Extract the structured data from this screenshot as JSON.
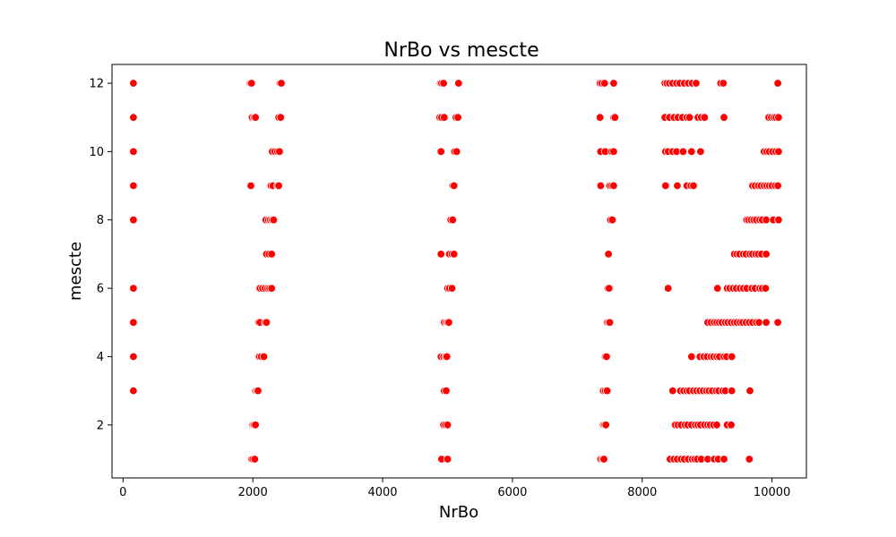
{
  "chart_data": {
    "type": "scatter",
    "title": "NrBo vs mescte",
    "xlabel": "NrBo",
    "ylabel": "mescte",
    "xlim": [
      -170,
      10530
    ],
    "ylim": [
      0.45,
      12.55
    ],
    "xticks": [
      0,
      2000,
      4000,
      6000,
      8000,
      10000
    ],
    "yticks": [
      2,
      4,
      6,
      8,
      10,
      12
    ],
    "grid": false,
    "point_color": "#ff0000",
    "point_edge_color": "#ffffff",
    "points": [
      [
        160,
        3
      ],
      [
        160,
        4
      ],
      [
        160,
        5
      ],
      [
        160,
        6
      ],
      [
        160,
        8
      ],
      [
        160,
        9
      ],
      [
        160,
        10
      ],
      [
        160,
        11
      ],
      [
        160,
        12
      ],
      [
        1960,
        12
      ],
      [
        1980,
        12
      ],
      [
        2420,
        12
      ],
      [
        2440,
        12
      ],
      [
        1990,
        11
      ],
      [
        2020,
        11
      ],
      [
        2040,
        11
      ],
      [
        2400,
        11
      ],
      [
        2430,
        11
      ],
      [
        2300,
        10
      ],
      [
        2340,
        10
      ],
      [
        2380,
        10
      ],
      [
        2410,
        10
      ],
      [
        1970,
        9
      ],
      [
        2280,
        9
      ],
      [
        2310,
        9
      ],
      [
        2380,
        9
      ],
      [
        2400,
        9
      ],
      [
        2200,
        8
      ],
      [
        2240,
        8
      ],
      [
        2270,
        8
      ],
      [
        2300,
        8
      ],
      [
        2320,
        8
      ],
      [
        2210,
        7
      ],
      [
        2250,
        7
      ],
      [
        2290,
        7
      ],
      [
        2110,
        6
      ],
      [
        2150,
        6
      ],
      [
        2190,
        6
      ],
      [
        2230,
        6
      ],
      [
        2260,
        6
      ],
      [
        2290,
        6
      ],
      [
        2090,
        5
      ],
      [
        2110,
        5
      ],
      [
        2190,
        5
      ],
      [
        2210,
        5
      ],
      [
        2100,
        4
      ],
      [
        2130,
        4
      ],
      [
        2170,
        4
      ],
      [
        2040,
        3
      ],
      [
        2060,
        3
      ],
      [
        2080,
        3
      ],
      [
        2000,
        2
      ],
      [
        2020,
        2
      ],
      [
        2040,
        2
      ],
      [
        1980,
        1
      ],
      [
        2000,
        1
      ],
      [
        2030,
        1
      ],
      [
        4890,
        12
      ],
      [
        4910,
        12
      ],
      [
        4940,
        12
      ],
      [
        5170,
        12
      ],
      [
        4880,
        11
      ],
      [
        4910,
        11
      ],
      [
        4950,
        11
      ],
      [
        5130,
        11
      ],
      [
        5160,
        11
      ],
      [
        4900,
        10
      ],
      [
        5110,
        10
      ],
      [
        5140,
        10
      ],
      [
        5080,
        9
      ],
      [
        5100,
        9
      ],
      [
        5050,
        8
      ],
      [
        5080,
        8
      ],
      [
        4900,
        7
      ],
      [
        5030,
        7
      ],
      [
        5070,
        7
      ],
      [
        5100,
        7
      ],
      [
        5000,
        6
      ],
      [
        5030,
        6
      ],
      [
        5070,
        6
      ],
      [
        4950,
        5
      ],
      [
        4980,
        5
      ],
      [
        5000,
        5
      ],
      [
        5020,
        5
      ],
      [
        4900,
        4
      ],
      [
        4940,
        4
      ],
      [
        4970,
        4
      ],
      [
        4990,
        4
      ],
      [
        4950,
        3
      ],
      [
        4980,
        3
      ],
      [
        4940,
        2
      ],
      [
        4970,
        2
      ],
      [
        5000,
        2
      ],
      [
        4910,
        1
      ],
      [
        5000,
        1
      ],
      [
        7350,
        12
      ],
      [
        7380,
        12
      ],
      [
        7420,
        12
      ],
      [
        7560,
        12
      ],
      [
        7350,
        11
      ],
      [
        7560,
        11
      ],
      [
        7580,
        11
      ],
      [
        7360,
        10
      ],
      [
        7430,
        10
      ],
      [
        7530,
        10
      ],
      [
        7560,
        10
      ],
      [
        7360,
        9
      ],
      [
        7500,
        9
      ],
      [
        7530,
        9
      ],
      [
        7560,
        9
      ],
      [
        7510,
        8
      ],
      [
        7540,
        8
      ],
      [
        7480,
        7
      ],
      [
        7470,
        6
      ],
      [
        7490,
        6
      ],
      [
        7460,
        5
      ],
      [
        7480,
        5
      ],
      [
        7500,
        5
      ],
      [
        7430,
        4
      ],
      [
        7450,
        4
      ],
      [
        7400,
        3
      ],
      [
        7430,
        3
      ],
      [
        7460,
        3
      ],
      [
        7400,
        2
      ],
      [
        7420,
        2
      ],
      [
        7440,
        2
      ],
      [
        7360,
        1
      ],
      [
        7390,
        1
      ],
      [
        7410,
        1
      ],
      [
        8350,
        12
      ],
      [
        8380,
        12
      ],
      [
        8420,
        12
      ],
      [
        8470,
        12
      ],
      [
        8530,
        12
      ],
      [
        8580,
        12
      ],
      [
        8650,
        12
      ],
      [
        8710,
        12
      ],
      [
        8770,
        12
      ],
      [
        8830,
        12
      ],
      [
        9210,
        12
      ],
      [
        9250,
        12
      ],
      [
        10090,
        12
      ],
      [
        8350,
        11
      ],
      [
        8420,
        11
      ],
      [
        8490,
        11
      ],
      [
        8550,
        11
      ],
      [
        8620,
        11
      ],
      [
        8690,
        11
      ],
      [
        8730,
        11
      ],
      [
        8860,
        11
      ],
      [
        8910,
        11
      ],
      [
        8960,
        11
      ],
      [
        9260,
        11
      ],
      [
        9950,
        11
      ],
      [
        9990,
        11
      ],
      [
        10030,
        11
      ],
      [
        10060,
        11
      ],
      [
        10100,
        11
      ],
      [
        8360,
        10
      ],
      [
        8400,
        10
      ],
      [
        8470,
        10
      ],
      [
        8530,
        10
      ],
      [
        8630,
        10
      ],
      [
        8760,
        10
      ],
      [
        8900,
        10
      ],
      [
        9880,
        10
      ],
      [
        9920,
        10
      ],
      [
        9960,
        10
      ],
      [
        10010,
        10
      ],
      [
        10060,
        10
      ],
      [
        10100,
        10
      ],
      [
        8360,
        9
      ],
      [
        8540,
        9
      ],
      [
        8690,
        9
      ],
      [
        8750,
        9
      ],
      [
        8790,
        9
      ],
      [
        9700,
        9
      ],
      [
        9740,
        9
      ],
      [
        9790,
        9
      ],
      [
        9830,
        9
      ],
      [
        9880,
        9
      ],
      [
        9920,
        9
      ],
      [
        9960,
        9
      ],
      [
        10000,
        9
      ],
      [
        10050,
        9
      ],
      [
        10090,
        9
      ],
      [
        9610,
        8
      ],
      [
        9640,
        8
      ],
      [
        9680,
        8
      ],
      [
        9720,
        8
      ],
      [
        9760,
        8
      ],
      [
        9810,
        8
      ],
      [
        9850,
        8
      ],
      [
        9910,
        8
      ],
      [
        10020,
        8
      ],
      [
        10100,
        8
      ],
      [
        9420,
        7
      ],
      [
        9460,
        7
      ],
      [
        9500,
        7
      ],
      [
        9560,
        7
      ],
      [
        9600,
        7
      ],
      [
        9660,
        7
      ],
      [
        9700,
        7
      ],
      [
        9750,
        7
      ],
      [
        9790,
        7
      ],
      [
        9840,
        7
      ],
      [
        9910,
        7
      ],
      [
        8400,
        6
      ],
      [
        9160,
        6
      ],
      [
        9310,
        6
      ],
      [
        9350,
        6
      ],
      [
        9400,
        6
      ],
      [
        9450,
        6
      ],
      [
        9510,
        6
      ],
      [
        9560,
        6
      ],
      [
        9610,
        6
      ],
      [
        9690,
        6
      ],
      [
        9740,
        6
      ],
      [
        9810,
        6
      ],
      [
        9850,
        6
      ],
      [
        9900,
        6
      ],
      [
        9010,
        5
      ],
      [
        9060,
        5
      ],
      [
        9110,
        5
      ],
      [
        9150,
        5
      ],
      [
        9190,
        5
      ],
      [
        9230,
        5
      ],
      [
        9280,
        5
      ],
      [
        9320,
        5
      ],
      [
        9370,
        5
      ],
      [
        9420,
        5
      ],
      [
        9460,
        5
      ],
      [
        9510,
        5
      ],
      [
        9550,
        5
      ],
      [
        9600,
        5
      ],
      [
        9650,
        5
      ],
      [
        9700,
        5
      ],
      [
        9760,
        5
      ],
      [
        9800,
        5
      ],
      [
        9910,
        5
      ],
      [
        10090,
        5
      ],
      [
        8760,
        4
      ],
      [
        8890,
        4
      ],
      [
        8950,
        4
      ],
      [
        9000,
        4
      ],
      [
        9060,
        4
      ],
      [
        9100,
        4
      ],
      [
        9150,
        4
      ],
      [
        9190,
        4
      ],
      [
        9260,
        4
      ],
      [
        9300,
        4
      ],
      [
        9380,
        4
      ],
      [
        8470,
        3
      ],
      [
        8590,
        3
      ],
      [
        8640,
        3
      ],
      [
        8690,
        3
      ],
      [
        8730,
        3
      ],
      [
        8790,
        3
      ],
      [
        8840,
        3
      ],
      [
        8890,
        3
      ],
      [
        8940,
        3
      ],
      [
        8990,
        3
      ],
      [
        9030,
        3
      ],
      [
        9080,
        3
      ],
      [
        9140,
        3
      ],
      [
        9180,
        3
      ],
      [
        9240,
        3
      ],
      [
        9280,
        3
      ],
      [
        9380,
        3
      ],
      [
        9660,
        3
      ],
      [
        8510,
        2
      ],
      [
        8550,
        2
      ],
      [
        8600,
        2
      ],
      [
        8660,
        2
      ],
      [
        8700,
        2
      ],
      [
        8760,
        2
      ],
      [
        8820,
        2
      ],
      [
        8860,
        2
      ],
      [
        8900,
        2
      ],
      [
        8960,
        2
      ],
      [
        9010,
        2
      ],
      [
        9050,
        2
      ],
      [
        9100,
        2
      ],
      [
        9150,
        2
      ],
      [
        9310,
        2
      ],
      [
        9370,
        2
      ],
      [
        8430,
        1
      ],
      [
        8490,
        1
      ],
      [
        8540,
        1
      ],
      [
        8600,
        1
      ],
      [
        8650,
        1
      ],
      [
        8710,
        1
      ],
      [
        8770,
        1
      ],
      [
        8810,
        1
      ],
      [
        8850,
        1
      ],
      [
        8910,
        1
      ],
      [
        9010,
        1
      ],
      [
        9110,
        1
      ],
      [
        9170,
        1
      ],
      [
        9260,
        1
      ],
      [
        9650,
        1
      ]
    ]
  }
}
